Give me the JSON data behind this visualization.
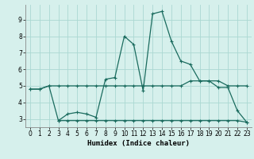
{
  "xlabel": "Humidex (Indice chaleur)",
  "background_color": "#d6f0ec",
  "grid_color": "#aad8d2",
  "line_color": "#1a6b5e",
  "xlim": [
    -0.5,
    23.5
  ],
  "ylim": [
    2.5,
    9.9
  ],
  "xticks": [
    0,
    1,
    2,
    3,
    4,
    5,
    6,
    7,
    8,
    9,
    10,
    11,
    12,
    13,
    14,
    15,
    16,
    17,
    18,
    19,
    20,
    21,
    22,
    23
  ],
  "yticks": [
    3,
    4,
    5,
    6,
    7,
    8,
    9
  ],
  "line_main_x": [
    0,
    1,
    2,
    3,
    4,
    5,
    6,
    7,
    8,
    9,
    10,
    11,
    12,
    13,
    14,
    15,
    16,
    17,
    18,
    19,
    20,
    21,
    22,
    23
  ],
  "line_main_y": [
    4.8,
    4.8,
    5.0,
    2.9,
    3.3,
    3.4,
    3.3,
    3.1,
    5.4,
    5.5,
    8.0,
    7.5,
    4.7,
    9.35,
    9.5,
    7.7,
    6.5,
    6.3,
    5.3,
    5.3,
    4.9,
    4.9,
    3.5,
    2.8
  ],
  "line_flat1_x": [
    0,
    1,
    2,
    3,
    4,
    5,
    6,
    7,
    8,
    9,
    10,
    11,
    12,
    13,
    14,
    15,
    16,
    17,
    18,
    19,
    20,
    21,
    22,
    23
  ],
  "line_flat1_y": [
    4.8,
    4.8,
    5.0,
    5.0,
    5.0,
    5.0,
    5.0,
    5.0,
    5.0,
    5.0,
    5.0,
    5.0,
    5.0,
    5.0,
    5.0,
    5.0,
    5.0,
    5.3,
    5.3,
    5.3,
    5.3,
    5.0,
    5.0,
    5.0
  ],
  "line_flat2_x": [
    3,
    4,
    5,
    6,
    7,
    8,
    9,
    10,
    11,
    12,
    13,
    14,
    15,
    16,
    17,
    18,
    19,
    20,
    21,
    22,
    23
  ],
  "line_flat2_y": [
    2.9,
    2.9,
    2.9,
    2.9,
    2.9,
    2.9,
    2.9,
    2.9,
    2.9,
    2.9,
    2.9,
    2.9,
    2.9,
    2.9,
    2.9,
    2.9,
    2.9,
    2.9,
    2.9,
    2.9,
    2.8
  ]
}
